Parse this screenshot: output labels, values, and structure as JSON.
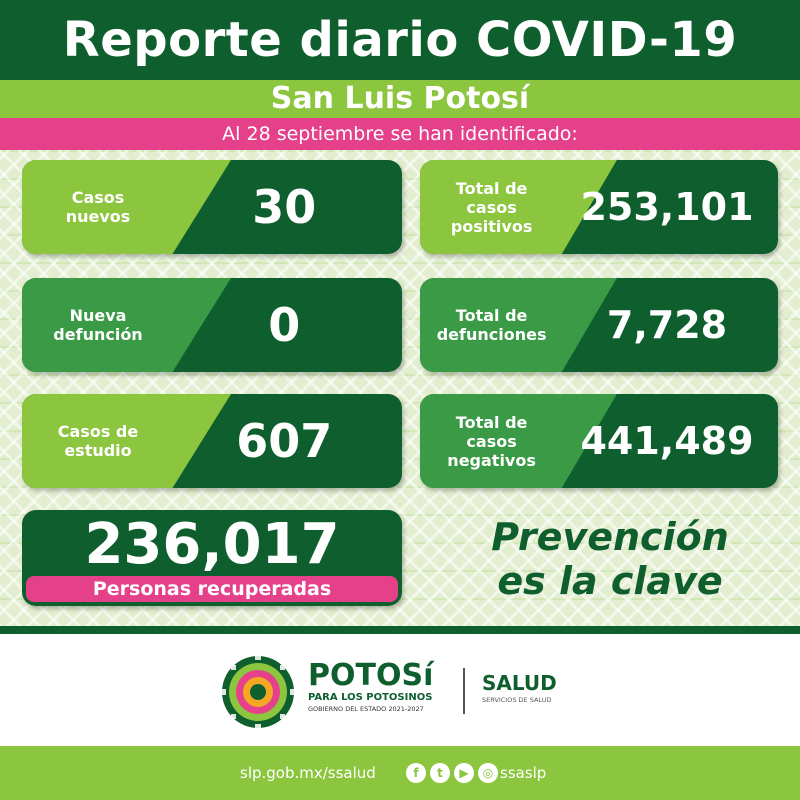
{
  "header": {
    "title": "Reporte diario COVID-19",
    "location": "San Luis Potosí",
    "date_line": "Al 28 septiembre se han identificado:"
  },
  "stats": {
    "casos_nuevos": {
      "label": "Casos\nnuevos",
      "value": "30"
    },
    "total_positivos": {
      "label": "Total de\ncasos\npositivos",
      "value": "253,101"
    },
    "nueva_defuncion": {
      "label": "Nueva\ndefunción",
      "value": "0"
    },
    "total_defunciones": {
      "label": "Total de\ndefunciones",
      "value": "7,728"
    },
    "casos_estudio": {
      "label": "Casos de\nestudio",
      "value": "607"
    },
    "total_negativos": {
      "label": "Total de\ncasos\nnegativos",
      "value": "441,489"
    }
  },
  "recovered": {
    "value": "236,017",
    "label": "Personas recuperadas"
  },
  "slogan": {
    "line1": "Prevención",
    "line2": "es la clave"
  },
  "logos": {
    "brand": "POTOSí",
    "tagline": "PARA LOS POTOSINOS",
    "government": "GOBIERNO DEL ESTADO 2021-2027",
    "dept": "SALUD",
    "dept_sub": "SERVICIOS DE SALUD"
  },
  "footer": {
    "url": "slp.gob.mx/ssalud",
    "handle": "ssaslp",
    "social_icons": [
      "facebook-icon",
      "twitter-icon",
      "youtube-icon",
      "instagram-icon"
    ]
  },
  "colors": {
    "dark_green": "#0f5e2e",
    "light_green": "#8cc63f",
    "mid_green": "#3a9a46",
    "pink": "#e5418a"
  }
}
